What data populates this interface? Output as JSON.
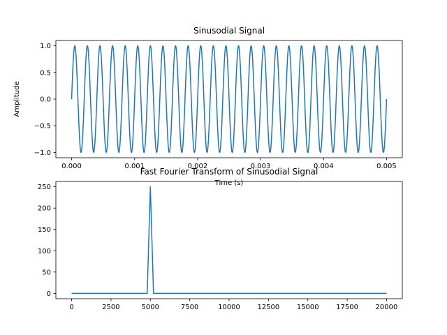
{
  "colors": {
    "series": "#1f77b4"
  },
  "chart_data": [
    {
      "type": "line",
      "title": "Sinusodial Signal",
      "xlabel": "Time (s)",
      "ylabel": "Amplitude",
      "xlim": [
        -0.00025,
        0.00525
      ],
      "ylim": [
        -1.1,
        1.1
      ],
      "xticks": [
        0.0,
        0.001,
        0.002,
        0.003,
        0.004,
        0.005
      ],
      "xtick_labels": [
        "0.000",
        "0.001",
        "0.002",
        "0.003",
        "0.004",
        "0.005"
      ],
      "yticks": [
        -1.0,
        -0.5,
        0.0,
        0.5,
        1.0
      ],
      "ytick_labels": [
        "−1.0",
        "−0.5",
        "0.0",
        "0.5",
        "1.0"
      ],
      "grid": false,
      "series": [
        {
          "function": "sin(2*pi*f*t)",
          "frequency_hz": 5000,
          "t_start": 0.0,
          "t_end": 0.005
        }
      ]
    },
    {
      "type": "line",
      "title": "Fast Fourier Transform of Sinusodial Signal",
      "xlabel": "",
      "ylabel": "",
      "xlim": [
        -1000,
        21000
      ],
      "ylim": [
        -12.5,
        262.5
      ],
      "xticks": [
        0,
        2500,
        5000,
        7500,
        10000,
        12500,
        15000,
        17500,
        20000
      ],
      "xtick_labels": [
        "0",
        "2500",
        "5000",
        "7500",
        "10000",
        "12500",
        "15000",
        "17500",
        "20000"
      ],
      "yticks": [
        0,
        50,
        100,
        150,
        200,
        250
      ],
      "ytick_labels": [
        "0",
        "50",
        "100",
        "150",
        "200",
        "250"
      ],
      "grid": false,
      "series": [
        {
          "x": [
            0,
            4800,
            5000,
            5200,
            20000
          ],
          "y": [
            0,
            0,
            250,
            0,
            0
          ]
        }
      ]
    }
  ]
}
